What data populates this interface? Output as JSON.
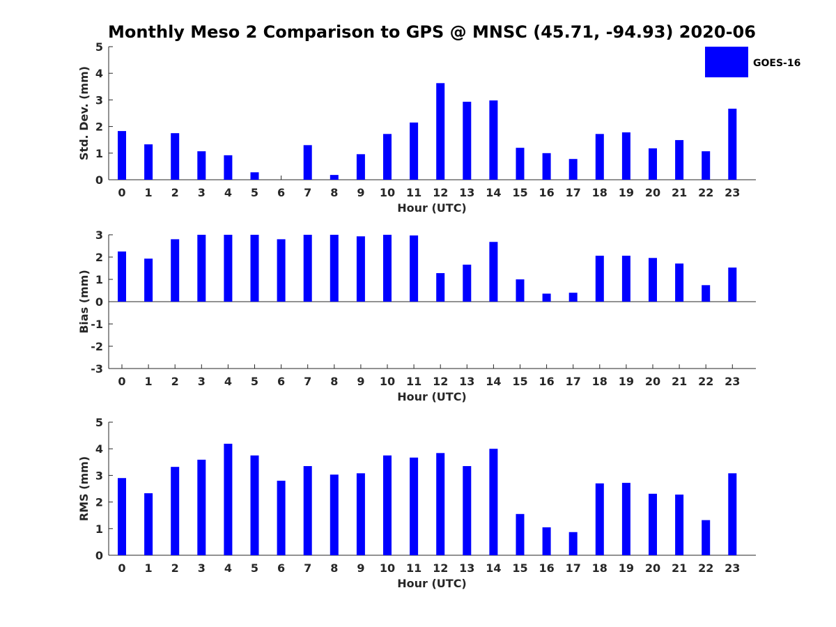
{
  "title": "Monthly Meso 2 Comparison to GPS @ MNSC (45.71, -94.93) 2020-06",
  "legend": {
    "label": "GOES-16",
    "color": "#0000ff"
  },
  "chart_data": [
    {
      "type": "bar",
      "id": "std",
      "ylabel": "Std. Dev. (mm)",
      "xlabel": "Hour (UTC)",
      "ylim": [
        0,
        5
      ],
      "yticks": [
        "0",
        "1",
        "2",
        "3",
        "4",
        "5"
      ],
      "categories": [
        "0",
        "1",
        "2",
        "3",
        "4",
        "5",
        "6",
        "7",
        "8",
        "9",
        "10",
        "11",
        "12",
        "13",
        "14",
        "15",
        "16",
        "17",
        "18",
        "19",
        "20",
        "21",
        "22",
        "23"
      ],
      "series": [
        {
          "name": "GOES-16",
          "values": [
            1.83,
            1.33,
            1.75,
            1.07,
            0.92,
            0.28,
            0.0,
            1.3,
            0.18,
            0.96,
            1.72,
            2.15,
            3.63,
            2.93,
            2.98,
            1.2,
            1.0,
            0.78,
            1.72,
            1.78,
            1.18,
            1.49,
            1.07,
            2.67
          ]
        }
      ]
    },
    {
      "type": "bar",
      "id": "bias",
      "ylabel": "Bias (mm)",
      "xlabel": "Hour (UTC)",
      "ylim": [
        -3,
        3
      ],
      "yticks": [
        "-3",
        "-2",
        "-1",
        "0",
        "1",
        "2",
        "3"
      ],
      "categories": [
        "0",
        "1",
        "2",
        "3",
        "4",
        "5",
        "6",
        "7",
        "8",
        "9",
        "10",
        "11",
        "12",
        "13",
        "14",
        "15",
        "16",
        "17",
        "18",
        "19",
        "20",
        "21",
        "22",
        "23"
      ],
      "series": [
        {
          "name": "GOES-16",
          "values": [
            2.25,
            1.93,
            2.8,
            3.0,
            3.0,
            3.0,
            2.8,
            3.0,
            3.0,
            2.93,
            3.0,
            2.97,
            1.28,
            1.66,
            2.68,
            1.0,
            0.36,
            0.4,
            2.06,
            2.06,
            1.96,
            1.71,
            0.74,
            1.53
          ]
        }
      ]
    },
    {
      "type": "bar",
      "id": "rms",
      "ylabel": "RMS (mm)",
      "xlabel": "Hour (UTC)",
      "ylim": [
        0,
        5
      ],
      "yticks": [
        "0",
        "1",
        "2",
        "3",
        "4",
        "5"
      ],
      "categories": [
        "0",
        "1",
        "2",
        "3",
        "4",
        "5",
        "6",
        "7",
        "8",
        "9",
        "10",
        "11",
        "12",
        "13",
        "14",
        "15",
        "16",
        "17",
        "18",
        "19",
        "20",
        "21",
        "22",
        "23"
      ],
      "series": [
        {
          "name": "GOES-16",
          "values": [
            2.9,
            2.33,
            3.32,
            3.59,
            4.19,
            3.75,
            2.8,
            3.35,
            3.03,
            3.08,
            3.75,
            3.67,
            3.84,
            3.35,
            4.0,
            1.55,
            1.05,
            0.87,
            2.7,
            2.72,
            2.31,
            2.28,
            1.32,
            3.08
          ]
        }
      ]
    }
  ]
}
